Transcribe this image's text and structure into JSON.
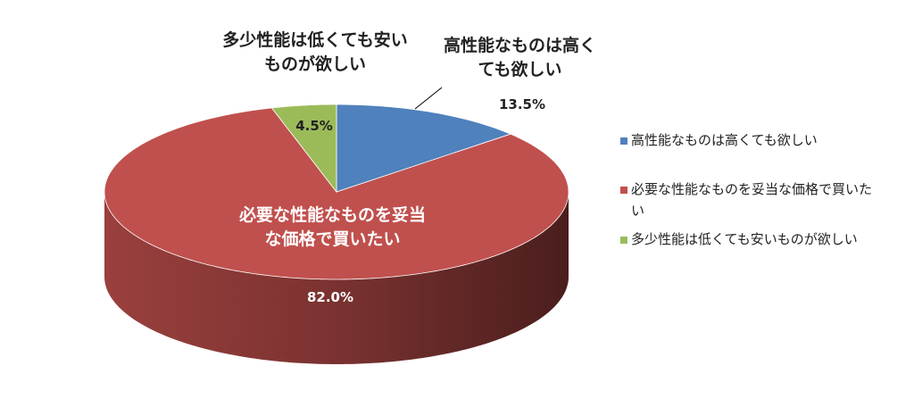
{
  "chart_data": {
    "type": "pie3d",
    "categories": [
      "高性能なものは高くても欲しい",
      "必要な性能なものを妥当な価格で買いたい",
      "多少性能は低くても安いものが欲しい"
    ],
    "values": [
      13.5,
      82.0,
      4.5
    ],
    "value_labels": [
      "13.5%",
      "82.0%",
      "4.5%"
    ],
    "colors": [
      "#4f81bd",
      "#c0504d",
      "#9bbb59"
    ],
    "legend": "right"
  }
}
